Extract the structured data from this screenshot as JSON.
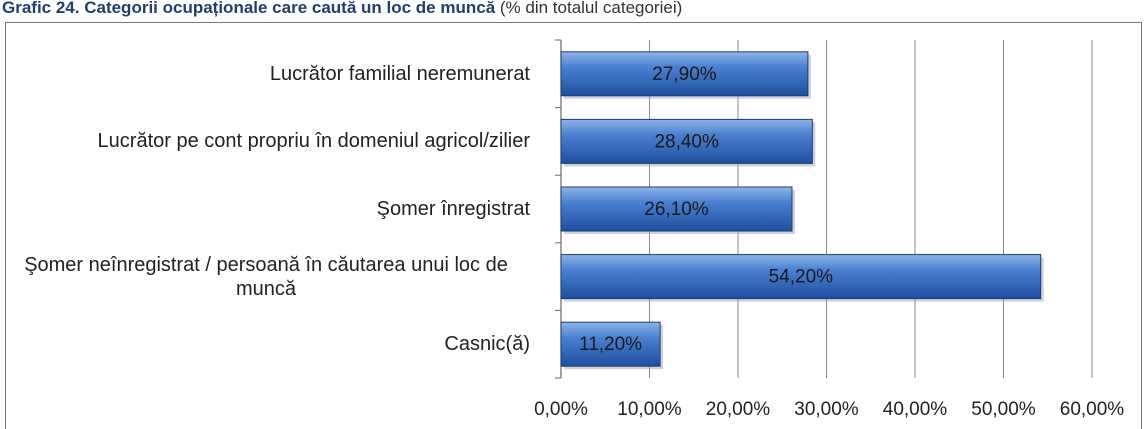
{
  "chart_data": {
    "type": "bar",
    "orientation": "horizontal",
    "title": "Grafic 24. Categorii ocupaționale care caută un loc de muncă",
    "subtitle": "(% din totalul categoriei)",
    "categories": [
      "Lucrător familial neremunerat",
      "Lucrător pe cont propriu în domeniul agricol/zilier",
      "Şomer înregistrat",
      "Şomer neînregistrat / persoană în căutarea unui loc de muncă",
      "Casnic(ă)"
    ],
    "values": [
      27.9,
      28.4,
      26.1,
      54.2,
      11.2
    ],
    "value_labels": [
      "27,90%",
      "28,40%",
      "26,10%",
      "54,20%",
      "11,20%"
    ],
    "color": "#3a6fc0",
    "xlim": [
      0,
      60
    ],
    "xticks": [
      {
        "value": 0,
        "label": "0,00%"
      },
      {
        "value": 10,
        "label": "10,00%"
      },
      {
        "value": 20,
        "label": "20,00%"
      },
      {
        "value": 30,
        "label": "30,00%"
      },
      {
        "value": 40,
        "label": "40,00%"
      },
      {
        "value": 50,
        "label": "50,00%"
      },
      {
        "value": 60,
        "label": "60,00%"
      }
    ],
    "grid": true
  }
}
